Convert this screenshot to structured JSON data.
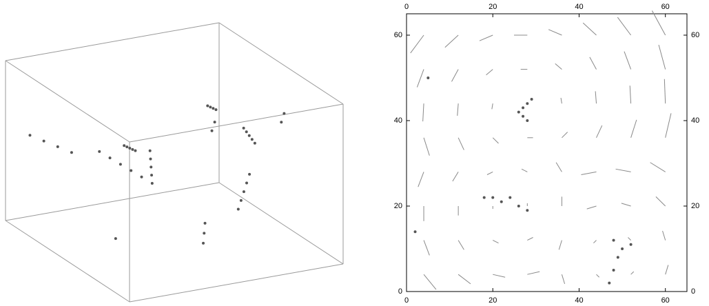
{
  "chart_data": [
    {
      "type": "scatter3d",
      "color": "#555555",
      "box_color": "#999999",
      "xlim": [
        0,
        64
      ],
      "ylim": [
        0,
        64
      ],
      "zlim": [
        0,
        64
      ],
      "x": [
        10,
        12,
        14,
        16,
        18,
        30,
        31,
        32,
        33,
        34,
        40,
        42,
        44,
        46,
        48,
        20,
        22,
        24,
        26,
        28,
        50,
        52,
        54,
        56,
        58,
        5,
        8,
        11,
        14,
        35,
        37,
        39,
        41,
        25,
        27,
        29,
        45,
        47,
        60,
        62,
        15
      ],
      "y": [
        20,
        22,
        24,
        26,
        28,
        40,
        42,
        44,
        46,
        48,
        10,
        12,
        14,
        16,
        18,
        50,
        48,
        46,
        44,
        42,
        30,
        32,
        34,
        36,
        38,
        60,
        58,
        56,
        54,
        20,
        22,
        24,
        26,
        5,
        8,
        11,
        35,
        37,
        25,
        27,
        33
      ],
      "z": [
        50,
        48,
        46,
        44,
        42,
        20,
        22,
        24,
        26,
        28,
        55,
        52,
        49,
        46,
        43,
        30,
        28,
        26,
        24,
        22,
        10,
        12,
        14,
        16,
        18,
        35,
        33,
        31,
        29,
        60,
        58,
        56,
        54,
        15,
        17,
        19,
        40,
        42,
        45,
        47,
        5
      ]
    },
    {
      "type": "quiver",
      "color": "#888888",
      "particle_color": "#555555",
      "xlim": [
        0,
        65
      ],
      "ylim": [
        0,
        65
      ],
      "xticks": [
        0,
        20,
        40,
        60
      ],
      "yticks": [
        0,
        20,
        40,
        60
      ],
      "x": [
        4,
        12,
        20,
        28,
        36,
        44,
        52,
        60,
        4,
        12,
        20,
        28,
        36,
        44,
        52,
        60,
        4,
        12,
        20,
        28,
        36,
        44,
        52,
        60,
        4,
        12,
        20,
        28,
        36,
        44,
        52,
        60,
        4,
        12,
        20,
        28,
        36,
        44,
        52,
        60,
        4,
        12,
        20,
        28,
        36,
        44,
        52,
        60,
        4,
        12,
        20,
        28,
        36,
        44,
        52,
        60,
        4,
        12,
        20,
        28,
        36,
        44,
        52,
        60
      ],
      "y": [
        4,
        4,
        4,
        4,
        4,
        4,
        4,
        4,
        12,
        12,
        12,
        12,
        12,
        12,
        12,
        12,
        20,
        20,
        20,
        20,
        20,
        20,
        20,
        20,
        28,
        28,
        28,
        28,
        28,
        28,
        28,
        28,
        36,
        36,
        36,
        36,
        36,
        36,
        36,
        36,
        44,
        44,
        44,
        44,
        44,
        44,
        44,
        44,
        52,
        52,
        52,
        52,
        52,
        52,
        52,
        52,
        60,
        60,
        60,
        60,
        60,
        60,
        60,
        60
      ],
      "u": [
        1.3,
        1.3,
        1.3,
        1.3,
        0.3,
        0.3,
        0.3,
        0.3,
        0.6,
        0.6,
        0.6,
        0.6,
        -0.3,
        -0.3,
        -0.3,
        -0.3,
        0,
        0,
        0,
        0,
        0,
        -1.0,
        -1.0,
        -1.0,
        -0.6,
        -0.6,
        -0.6,
        -0.6,
        -0.6,
        -1.6,
        -1.6,
        -1.6,
        0.6,
        0.6,
        0.6,
        0.6,
        0.6,
        0.6,
        0.6,
        0.6,
        -0.1,
        -0.1,
        -0.1,
        -0.1,
        -0.1,
        -0.1,
        -0.1,
        -0.1,
        -0.7,
        -0.7,
        -0.7,
        -0.7,
        -0.7,
        -0.7,
        -0.7,
        -0.7,
        -1.4,
        -1.4,
        -1.4,
        -1.4,
        -1.4,
        -1.4,
        -1.4,
        -1.4
      ],
      "v": [
        -1.6,
        -1.0,
        -0.3,
        0.3,
        -1.0,
        -0.3,
        0.3,
        1.0,
        -1.6,
        -1.0,
        -0.3,
        0.3,
        -1.0,
        -0.3,
        0.3,
        1.0,
        -1.6,
        -1.0,
        -0.3,
        0.3,
        1.0,
        -0.3,
        0.3,
        1.0,
        -1.6,
        -1.0,
        -0.3,
        0.3,
        1.0,
        -0.3,
        0.3,
        1.0,
        -1.9,
        -1.3,
        -0.6,
        0,
        0.6,
        1.3,
        1.9,
        2.6,
        -1.9,
        -1.3,
        -0.6,
        0,
        0.6,
        1.3,
        1.9,
        2.6,
        -1.9,
        -1.3,
        -0.6,
        0,
        0.6,
        1.3,
        1.9,
        2.6,
        -1.9,
        -1.3,
        -0.6,
        0,
        0.6,
        1.3,
        1.9,
        2.6
      ],
      "particle_x": [
        26,
        27,
        28,
        29,
        27,
        28,
        47,
        48,
        49,
        48,
        50,
        52,
        18,
        20,
        22,
        24,
        26,
        28,
        2,
        5
      ],
      "particle_y": [
        42,
        43,
        44,
        45,
        41,
        40,
        2,
        5,
        8,
        12,
        10,
        11,
        22,
        22,
        21,
        22,
        20,
        19,
        14,
        50
      ]
    }
  ]
}
